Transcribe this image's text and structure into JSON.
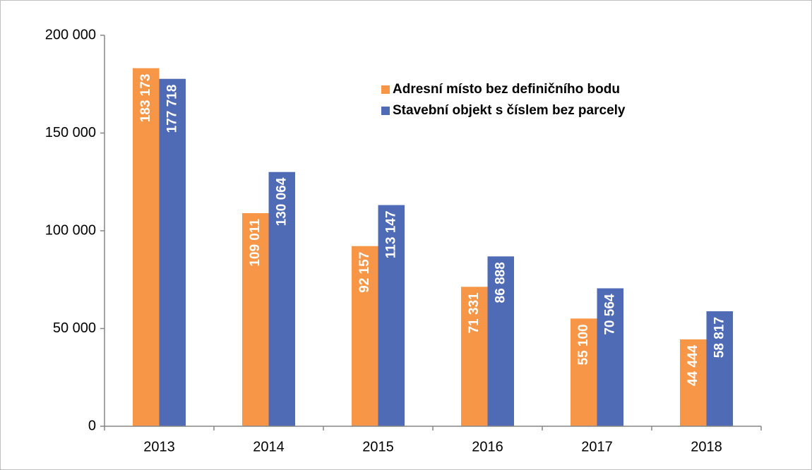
{
  "chart_data": {
    "type": "bar",
    "categories": [
      "2013",
      "2014",
      "2015",
      "2016",
      "2017",
      "2018"
    ],
    "series": [
      {
        "name": "Adresní místo bez definičního bodu",
        "color": "#f79646",
        "values": [
          183173,
          109011,
          92157,
          71331,
          55100,
          44444
        ],
        "value_labels": [
          "183 173",
          "109 011",
          "92 157",
          "71 331",
          "55 100",
          "44 444"
        ]
      },
      {
        "name": "Stavební objekt s číslem bez parcely",
        "color": "#4f6bb5",
        "values": [
          177718,
          130064,
          113147,
          86888,
          70564,
          58817
        ],
        "value_labels": [
          "177 718",
          "130 064",
          "113 147",
          "86 888",
          "70 564",
          "58 817"
        ]
      }
    ],
    "ylim": [
      0,
      200000
    ],
    "yticks": [
      {
        "value": 0,
        "label": "0"
      },
      {
        "value": 50000,
        "label": "50 000"
      },
      {
        "value": 100000,
        "label": "100 000"
      },
      {
        "value": 150000,
        "label": "150 000"
      },
      {
        "value": 200000,
        "label": "200 000"
      }
    ],
    "legend": "upper-right"
  }
}
